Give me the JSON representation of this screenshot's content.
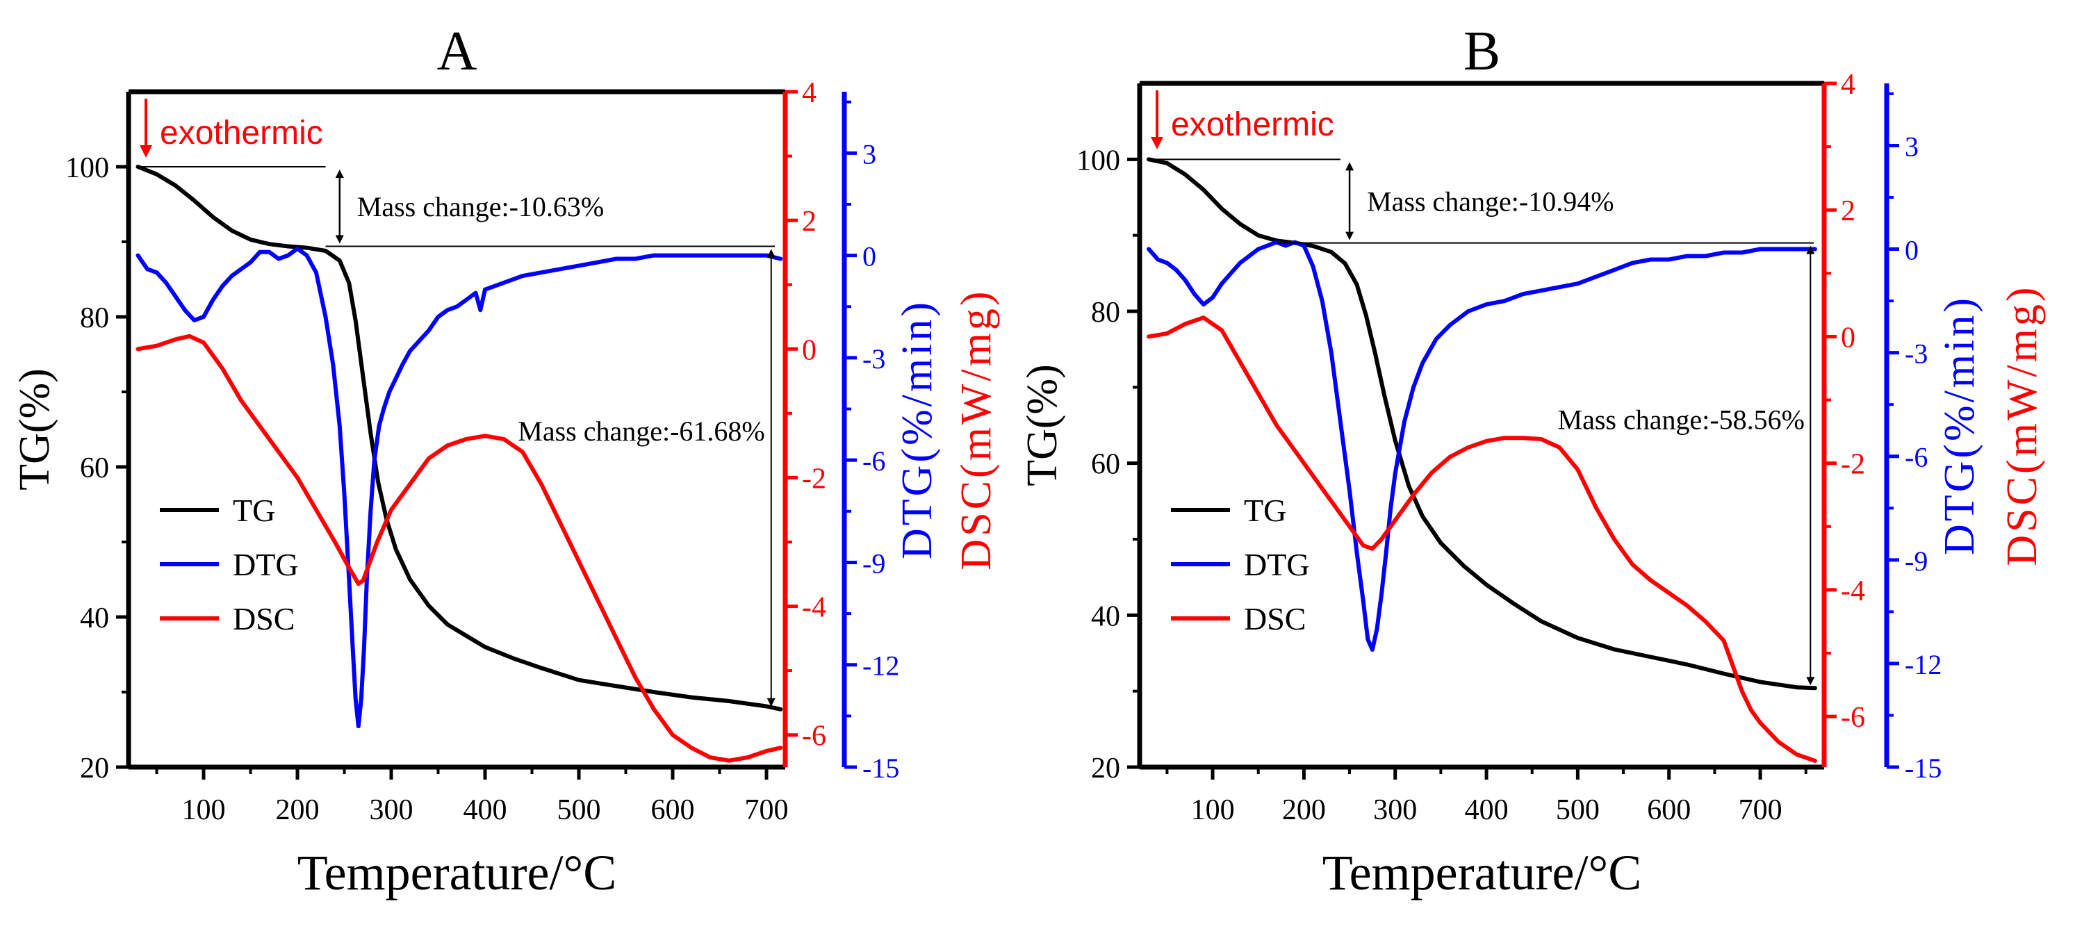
{
  "figure": {
    "caption_marker": "exothermic",
    "x_unit_label": "Temperature/°C"
  },
  "chart_data": [
    {
      "type": "line",
      "title": "A",
      "xlabel": "Temperature/°C",
      "xlim": [
        20,
        720
      ],
      "xticks": [
        "100",
        "200",
        "300",
        "400",
        "500",
        "600",
        "700"
      ],
      "xtick_values": [
        100,
        200,
        300,
        400,
        500,
        600,
        700
      ],
      "axes": {
        "tg": {
          "label": "TG(%)",
          "lim": [
            20,
            110
          ],
          "ticks": [
            "20",
            "40",
            "60",
            "80",
            "100"
          ],
          "tick_values": [
            20,
            40,
            60,
            80,
            100
          ],
          "color": "#000000"
        },
        "dsc": {
          "label": "DSC(mW/mg)",
          "lim": [
            -6.5,
            4
          ],
          "ticks": [
            "-6",
            "-4",
            "-2",
            "0",
            "2",
            "4"
          ],
          "tick_values": [
            -6,
            -4,
            -2,
            0,
            2,
            4
          ],
          "color": "#ff0000"
        },
        "dtg": {
          "label": "DTG(%/min)",
          "lim": [
            -15,
            4.8
          ],
          "ticks": [
            "-15",
            "-12",
            "-9",
            "-6",
            "-3",
            "0",
            "3"
          ],
          "tick_values": [
            -15,
            -12,
            -9,
            -6,
            -3,
            0,
            3
          ],
          "color": "#0000ff"
        }
      },
      "series": [
        {
          "name": "TG",
          "axis": "tg",
          "color": "#000000",
          "x": [
            30,
            50,
            70,
            90,
            110,
            130,
            150,
            170,
            190,
            210,
            230,
            245,
            255,
            262,
            270,
            278,
            286,
            295,
            305,
            320,
            340,
            360,
            380,
            400,
            430,
            460,
            500,
            540,
            580,
            620,
            660,
            700,
            715
          ],
          "y": [
            100,
            99,
            97.5,
            95.5,
            93.3,
            91.5,
            90.3,
            89.7,
            89.4,
            89.2,
            88.8,
            87.5,
            84.5,
            79.5,
            72,
            64.5,
            58,
            53,
            49,
            45,
            41.5,
            39,
            37.5,
            36,
            34.5,
            33.2,
            31.6,
            30.8,
            30,
            29.3,
            28.8,
            28.1,
            27.7
          ]
        },
        {
          "name": "DTG",
          "axis": "dtg",
          "color": "#0000ff",
          "x": [
            30,
            40,
            50,
            60,
            70,
            80,
            90,
            100,
            110,
            120,
            130,
            140,
            150,
            160,
            170,
            180,
            190,
            200,
            210,
            220,
            230,
            238,
            245,
            250,
            255,
            259,
            262,
            265,
            268,
            271,
            274,
            278,
            282,
            287,
            292,
            298,
            305,
            312,
            320,
            330,
            340,
            350,
            360,
            370,
            380,
            390,
            395,
            400,
            420,
            440,
            460,
            480,
            500,
            520,
            540,
            560,
            580,
            600,
            620,
            640,
            660,
            680,
            700,
            715
          ],
          "y": [
            0,
            -0.4,
            -0.5,
            -0.8,
            -1.2,
            -1.6,
            -1.9,
            -1.8,
            -1.3,
            -0.9,
            -0.6,
            -0.4,
            -0.2,
            0.1,
            0.1,
            -0.1,
            0,
            0.2,
            0,
            -0.5,
            -1.8,
            -3.2,
            -5,
            -7,
            -9.5,
            -11.5,
            -13,
            -13.8,
            -13,
            -11.5,
            -9.5,
            -7.5,
            -6,
            -5,
            -4.5,
            -4,
            -3.6,
            -3.2,
            -2.8,
            -2.5,
            -2.2,
            -1.8,
            -1.6,
            -1.5,
            -1.3,
            -1.1,
            -1.6,
            -1,
            -0.8,
            -0.6,
            -0.5,
            -0.4,
            -0.3,
            -0.2,
            -0.1,
            -0.1,
            0,
            0,
            0,
            0,
            0,
            0,
            0,
            -0.1
          ]
        },
        {
          "name": "DSC",
          "axis": "dsc",
          "color": "#ff0000",
          "x": [
            30,
            50,
            70,
            85,
            100,
            120,
            140,
            160,
            180,
            200,
            220,
            240,
            255,
            265,
            270,
            275,
            285,
            300,
            320,
            340,
            360,
            380,
            400,
            420,
            440,
            460,
            480,
            500,
            520,
            540,
            560,
            580,
            600,
            620,
            640,
            660,
            680,
            700,
            715
          ],
          "y": [
            0,
            0.05,
            0.15,
            0.2,
            0.1,
            -0.3,
            -0.8,
            -1.2,
            -1.6,
            -2,
            -2.5,
            -3,
            -3.4,
            -3.65,
            -3.6,
            -3.4,
            -3,
            -2.5,
            -2.1,
            -1.7,
            -1.5,
            -1.4,
            -1.35,
            -1.4,
            -1.6,
            -2.1,
            -2.7,
            -3.3,
            -3.9,
            -4.5,
            -5.1,
            -5.6,
            -6,
            -6.2,
            -6.35,
            -6.4,
            -6.35,
            -6.25,
            -6.2
          ]
        }
      ],
      "annotations": {
        "mass1": "Mass change:-10.63%",
        "mass2": "Mass change:-61.68%"
      },
      "legend": {
        "placement": "lower-left",
        "entries": [
          "TG",
          "DTG",
          "DSC"
        ]
      }
    },
    {
      "type": "line",
      "title": "B",
      "xlabel": "Temperature/°C",
      "xlim": [
        20,
        770
      ],
      "xticks": [
        "100",
        "200",
        "300",
        "400",
        "500",
        "600",
        "700"
      ],
      "xtick_values": [
        100,
        200,
        300,
        400,
        500,
        600,
        700
      ],
      "axes": {
        "tg": {
          "label": "TG(%)",
          "lim": [
            20,
            110
          ],
          "ticks": [
            "20",
            "40",
            "60",
            "80",
            "100"
          ],
          "tick_values": [
            20,
            40,
            60,
            80,
            100
          ],
          "color": "#000000"
        },
        "dsc": {
          "label": "DSC(mW/mg)",
          "lim": [
            -6.8,
            4
          ],
          "ticks": [
            "-6",
            "-4",
            "-2",
            "0",
            "2",
            "4"
          ],
          "tick_values": [
            -6,
            -4,
            -2,
            0,
            2,
            4
          ],
          "color": "#ff0000"
        },
        "dtg": {
          "label": "DTG(%/min)",
          "lim": [
            -15,
            4.8
          ],
          "ticks": [
            "-15",
            "-12",
            "-9",
            "-6",
            "-3",
            "0",
            "3"
          ],
          "tick_values": [
            -15,
            -12,
            -9,
            -6,
            -3,
            0,
            3
          ],
          "color": "#0000ff"
        }
      },
      "series": [
        {
          "name": "TG",
          "axis": "tg",
          "color": "#000000",
          "x": [
            30,
            50,
            70,
            90,
            110,
            130,
            150,
            170,
            190,
            210,
            230,
            245,
            258,
            268,
            278,
            288,
            300,
            315,
            330,
            350,
            375,
            400,
            430,
            460,
            500,
            540,
            580,
            620,
            660,
            700,
            740,
            760
          ],
          "y": [
            100,
            99.5,
            98,
            96,
            93.5,
            91.5,
            90,
            89.3,
            89,
            88.6,
            87.8,
            86.3,
            83.5,
            79.5,
            74.5,
            69,
            63,
            57,
            53,
            49.5,
            46.5,
            44,
            41.5,
            39.2,
            37,
            35.5,
            34.5,
            33.5,
            32.3,
            31.2,
            30.5,
            30.4
          ]
        },
        {
          "name": "DTG",
          "axis": "dtg",
          "color": "#0000ff",
          "x": [
            30,
            40,
            50,
            60,
            70,
            80,
            90,
            100,
            110,
            120,
            130,
            140,
            150,
            160,
            170,
            180,
            190,
            200,
            210,
            220,
            230,
            240,
            250,
            258,
            265,
            270,
            275,
            280,
            285,
            290,
            295,
            300,
            310,
            320,
            330,
            345,
            360,
            380,
            400,
            420,
            440,
            460,
            480,
            500,
            520,
            540,
            560,
            580,
            600,
            620,
            640,
            660,
            680,
            700,
            720,
            740,
            760
          ],
          "y": [
            0,
            -0.3,
            -0.4,
            -0.6,
            -0.9,
            -1.3,
            -1.6,
            -1.4,
            -1,
            -0.7,
            -0.4,
            -0.2,
            0,
            0.1,
            0.2,
            0.1,
            0.2,
            0.1,
            -0.5,
            -1.5,
            -3,
            -5,
            -7,
            -8.8,
            -10.2,
            -11.3,
            -11.6,
            -11,
            -10,
            -8.8,
            -7.5,
            -6.5,
            -5,
            -4,
            -3.3,
            -2.6,
            -2.2,
            -1.8,
            -1.6,
            -1.5,
            -1.3,
            -1.2,
            -1.1,
            -1,
            -0.8,
            -0.6,
            -0.4,
            -0.3,
            -0.3,
            -0.2,
            -0.2,
            -0.1,
            -0.1,
            0,
            0,
            0,
            0
          ]
        },
        {
          "name": "DSC",
          "axis": "dsc",
          "color": "#ff0000",
          "x": [
            30,
            50,
            70,
            90,
            110,
            130,
            150,
            170,
            190,
            210,
            230,
            250,
            265,
            275,
            285,
            300,
            320,
            340,
            360,
            380,
            400,
            420,
            440,
            460,
            480,
            500,
            520,
            540,
            560,
            580,
            600,
            620,
            640,
            660,
            680,
            690,
            700,
            720,
            740,
            760
          ],
          "y": [
            0,
            0.05,
            0.2,
            0.3,
            0.1,
            -0.4,
            -0.9,
            -1.4,
            -1.8,
            -2.2,
            -2.6,
            -3,
            -3.3,
            -3.35,
            -3.2,
            -2.9,
            -2.5,
            -2.15,
            -1.9,
            -1.75,
            -1.65,
            -1.6,
            -1.6,
            -1.62,
            -1.75,
            -2.1,
            -2.7,
            -3.2,
            -3.6,
            -3.85,
            -4.05,
            -4.25,
            -4.5,
            -4.8,
            -5.6,
            -5.9,
            -6.1,
            -6.4,
            -6.6,
            -6.7
          ]
        }
      ],
      "annotations": {
        "mass1": "Mass change:-10.94%",
        "mass2": "Mass change:-58.56%"
      },
      "legend": {
        "placement": "lower-left",
        "entries": [
          "TG",
          "DTG",
          "DSC"
        ]
      }
    }
  ]
}
